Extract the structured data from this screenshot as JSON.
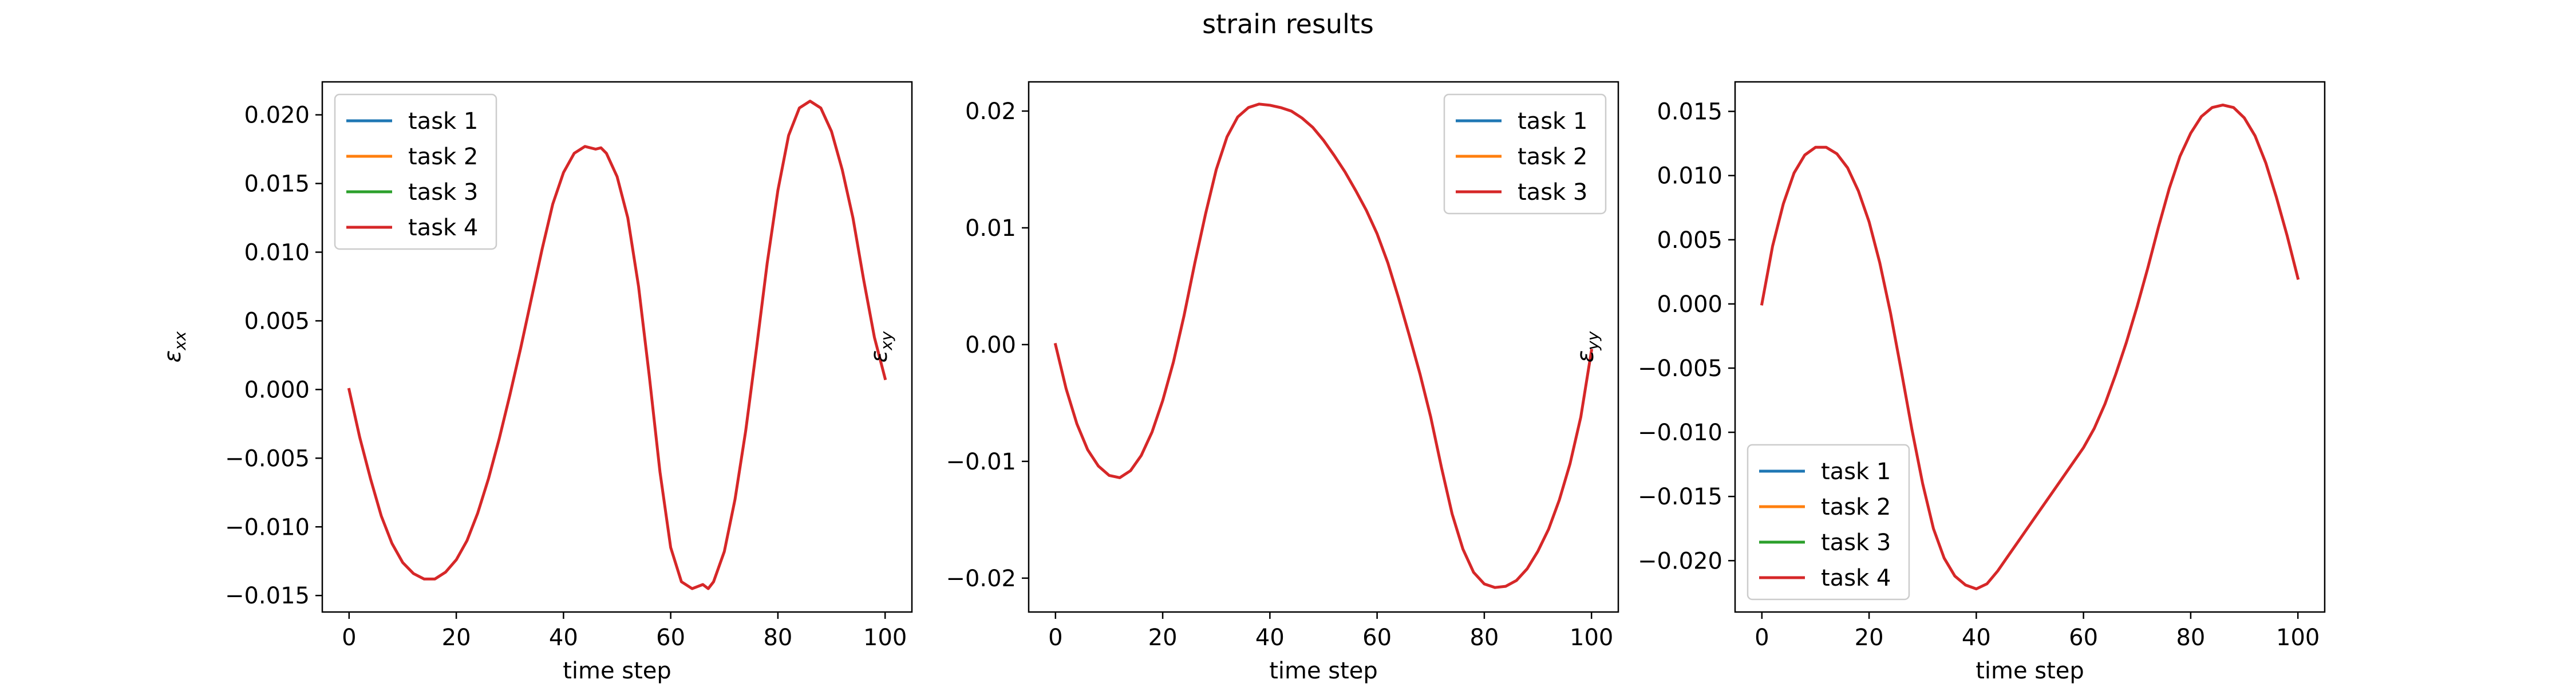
{
  "figure": {
    "title": "strain results"
  },
  "chart_data": [
    {
      "type": "line",
      "title": "",
      "xlabel": "time step",
      "ylabel": "ε_xx",
      "ylabel_main": "ε",
      "ylabel_sub": "xx",
      "xlim": [
        -5,
        105
      ],
      "ylim": [
        -0.0162,
        0.0224
      ],
      "xticks": [
        0,
        20,
        40,
        60,
        80,
        100
      ],
      "xtick_labels": [
        "0",
        "20",
        "40",
        "60",
        "80",
        "100"
      ],
      "yticks": [
        -0.015,
        -0.01,
        -0.005,
        0.0,
        0.005,
        0.01,
        0.015,
        0.02
      ],
      "ytick_labels": [
        "−0.015",
        "−0.010",
        "−0.005",
        "0.000",
        "0.005",
        "0.010",
        "0.015",
        "0.020"
      ],
      "grid": false,
      "legend_position": "upper-left",
      "series": [
        {
          "name": "task 1",
          "color": "#1f77b4",
          "x": [],
          "y": []
        },
        {
          "name": "task 2",
          "color": "#ff7f0e",
          "x": [],
          "y": []
        },
        {
          "name": "task 3",
          "color": "#2ca02c",
          "x": [],
          "y": []
        },
        {
          "name": "task 4",
          "color": "#d62728",
          "x": [
            0,
            2,
            4,
            6,
            8,
            10,
            12,
            14,
            16,
            18,
            20,
            22,
            24,
            26,
            28,
            30,
            32,
            34,
            36,
            38,
            40,
            42,
            44,
            46,
            47,
            48,
            50,
            52,
            54,
            56,
            58,
            60,
            62,
            64,
            66,
            67,
            68,
            70,
            72,
            74,
            76,
            78,
            80,
            82,
            84,
            86,
            88,
            90,
            92,
            94,
            96,
            98,
            100
          ],
          "y": [
            0.0,
            -0.0035,
            -0.0065,
            -0.0092,
            -0.0112,
            -0.0126,
            -0.0134,
            -0.0138,
            -0.0138,
            -0.0133,
            -0.0124,
            -0.011,
            -0.009,
            -0.0065,
            -0.0036,
            -0.0004,
            0.003,
            0.0066,
            0.0102,
            0.0135,
            0.0158,
            0.0172,
            0.0177,
            0.0175,
            0.0176,
            0.0172,
            0.0155,
            0.0125,
            0.0075,
            0.001,
            -0.006,
            -0.0115,
            -0.014,
            -0.0145,
            -0.0142,
            -0.0145,
            -0.014,
            -0.0118,
            -0.008,
            -0.003,
            0.003,
            0.0092,
            0.0145,
            0.0185,
            0.0205,
            0.021,
            0.0205,
            0.0188,
            0.016,
            0.0125,
            0.008,
            0.0038,
            0.0008
          ]
        }
      ]
    },
    {
      "type": "line",
      "title": "",
      "xlabel": "time step",
      "ylabel": "ε_xy",
      "ylabel_main": "ε",
      "ylabel_sub": "xy",
      "xlim": [
        -5,
        105
      ],
      "ylim": [
        -0.0229,
        0.0225
      ],
      "xticks": [
        0,
        20,
        40,
        60,
        80,
        100
      ],
      "xtick_labels": [
        "0",
        "20",
        "40",
        "60",
        "80",
        "100"
      ],
      "yticks": [
        -0.02,
        -0.01,
        0.0,
        0.01,
        0.02
      ],
      "ytick_labels": [
        "−0.02",
        "−0.01",
        "0.00",
        "0.01",
        "0.02"
      ],
      "grid": false,
      "legend_position": "upper-right",
      "series": [
        {
          "name": "task 1",
          "color": "#1f77b4",
          "x": [],
          "y": []
        },
        {
          "name": "task 2",
          "color": "#ff7f0e",
          "x": [],
          "y": []
        },
        {
          "name": "task 3",
          "color": "#d62728",
          "x": [
            0,
            2,
            4,
            6,
            8,
            10,
            12,
            14,
            16,
            18,
            20,
            22,
            24,
            26,
            28,
            30,
            32,
            34,
            36,
            38,
            40,
            42,
            44,
            46,
            48,
            50,
            52,
            54,
            56,
            58,
            60,
            62,
            64,
            66,
            68,
            70,
            72,
            74,
            76,
            78,
            80,
            82,
            84,
            86,
            88,
            90,
            92,
            94,
            96,
            98,
            100
          ],
          "y": [
            0.0,
            -0.0038,
            -0.0068,
            -0.009,
            -0.0104,
            -0.0112,
            -0.0114,
            -0.0108,
            -0.0095,
            -0.0075,
            -0.0048,
            -0.0015,
            0.0025,
            0.007,
            0.0112,
            0.015,
            0.0178,
            0.0195,
            0.0203,
            0.0206,
            0.0205,
            0.0203,
            0.02,
            0.0194,
            0.0186,
            0.0175,
            0.0162,
            0.0148,
            0.0132,
            0.0115,
            0.0095,
            0.007,
            0.004,
            0.0008,
            -0.0025,
            -0.0062,
            -0.0105,
            -0.0145,
            -0.0175,
            -0.0195,
            -0.0205,
            -0.0208,
            -0.0207,
            -0.0202,
            -0.0192,
            -0.0177,
            -0.0158,
            -0.0133,
            -0.0102,
            -0.0062,
            -0.0005
          ]
        }
      ]
    },
    {
      "type": "line",
      "title": "",
      "xlabel": "time step",
      "ylabel": "ε_yy",
      "ylabel_main": "ε",
      "ylabel_sub": "yy",
      "xlim": [
        -5,
        105
      ],
      "ylim": [
        -0.024,
        0.0173
      ],
      "xticks": [
        0,
        20,
        40,
        60,
        80,
        100
      ],
      "xtick_labels": [
        "0",
        "20",
        "40",
        "60",
        "80",
        "100"
      ],
      "yticks": [
        -0.02,
        -0.015,
        -0.01,
        -0.005,
        0.0,
        0.005,
        0.01,
        0.015
      ],
      "ytick_labels": [
        "−0.020",
        "−0.015",
        "−0.010",
        "−0.005",
        "0.000",
        "0.005",
        "0.010",
        "0.015"
      ],
      "grid": false,
      "legend_position": "lower-left",
      "series": [
        {
          "name": "task 1",
          "color": "#1f77b4",
          "x": [],
          "y": []
        },
        {
          "name": "task 2",
          "color": "#ff7f0e",
          "x": [],
          "y": []
        },
        {
          "name": "task 3",
          "color": "#2ca02c",
          "x": [],
          "y": []
        },
        {
          "name": "task 4",
          "color": "#d62728",
          "x": [
            0,
            2,
            4,
            6,
            8,
            10,
            12,
            14,
            16,
            18,
            20,
            22,
            24,
            26,
            28,
            30,
            32,
            34,
            36,
            38,
            40,
            42,
            44,
            46,
            48,
            50,
            52,
            54,
            56,
            58,
            60,
            62,
            64,
            66,
            68,
            70,
            72,
            74,
            76,
            78,
            80,
            82,
            84,
            86,
            88,
            90,
            92,
            94,
            96,
            98,
            100
          ],
          "y": [
            0.0,
            0.0045,
            0.0078,
            0.0102,
            0.0116,
            0.0122,
            0.0122,
            0.0117,
            0.0106,
            0.0088,
            0.0064,
            0.0032,
            -0.0007,
            -0.0052,
            -0.0098,
            -0.014,
            -0.0175,
            -0.0198,
            -0.0212,
            -0.0219,
            -0.0222,
            -0.0218,
            -0.0208,
            -0.0196,
            -0.0184,
            -0.0172,
            -0.016,
            -0.0148,
            -0.0136,
            -0.0124,
            -0.0112,
            -0.0097,
            -0.0078,
            -0.0055,
            -0.003,
            -0.0002,
            0.0028,
            0.006,
            0.009,
            0.0115,
            0.0133,
            0.0146,
            0.0153,
            0.0155,
            0.0153,
            0.0145,
            0.0131,
            0.011,
            0.0083,
            0.0053,
            0.002
          ]
        }
      ]
    }
  ]
}
